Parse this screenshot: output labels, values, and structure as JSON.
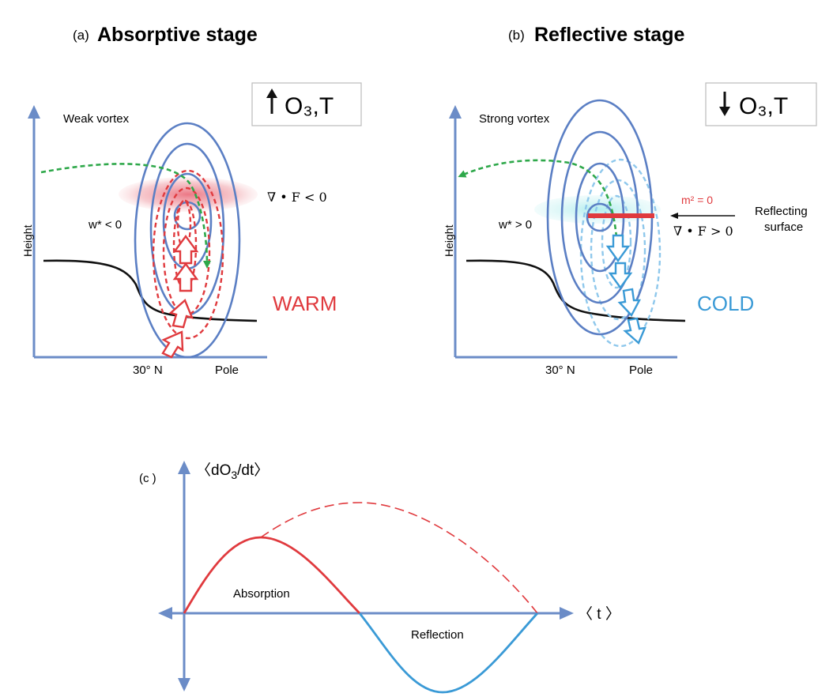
{
  "panel_a": {
    "tag": "(a)",
    "title": "Absorptive stage",
    "badge_arrow": "up",
    "badge_text": "O₃,T",
    "vortex": "Weak vortex",
    "w_label": "w* < 0",
    "divf": "∇ • F < 0",
    "ylabel": "Height",
    "x_left": "30° N",
    "x_right": "Pole",
    "temp": "WARM",
    "temp_color": "#e03a3e"
  },
  "panel_b": {
    "tag": "(b)",
    "title": "Reflective stage",
    "badge_arrow": "down",
    "badge_text": "O₃,T",
    "vortex": "Strong vortex",
    "w_label": "w* > 0",
    "m2": "m² = 0",
    "divf": "∇ • F > 0",
    "reflect_1": "Reflecting",
    "reflect_2": "surface",
    "ylabel": "Height",
    "x_left": "30° N",
    "x_right": "Pole",
    "temp": "COLD",
    "temp_color": "#3a9ad6"
  },
  "panel_c": {
    "tag": "(c )",
    "y_label_pre": "〈dO",
    "y_label_sub": "3",
    "y_label_post": "/dt〉",
    "x_label": "〈 t 〉",
    "absorption": "Absorption",
    "reflection": "Reflection"
  },
  "colors": {
    "axis": "#6b8cc7",
    "contour": "#5b7fc4",
    "red": "#e03a3e",
    "lightblue": "#8fc8ec",
    "green": "#2ea84a",
    "blue_curve": "#3a9ad6"
  }
}
